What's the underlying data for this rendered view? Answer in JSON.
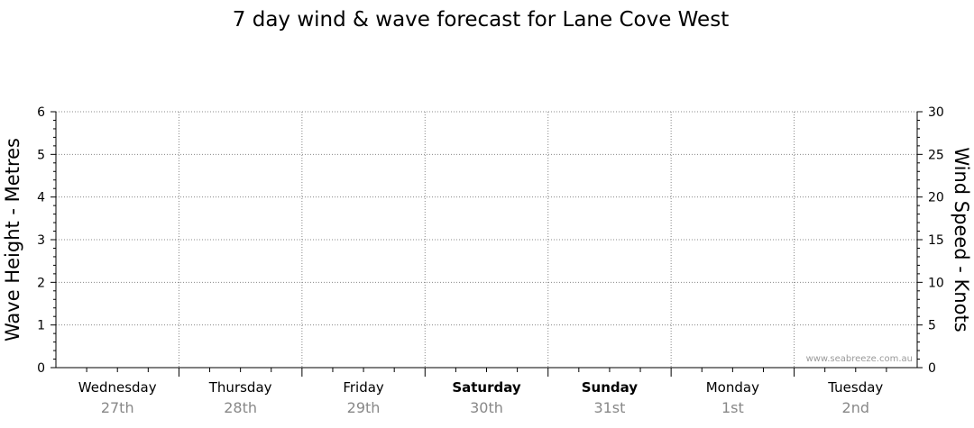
{
  "chart_data": {
    "type": "line",
    "title": "7 day wind & wave forecast for Lane Cove West",
    "ylabel_left": "Wave Height - Metres",
    "ylabel_right": "Wind Speed - Knots",
    "ylim_left": [
      0,
      6
    ],
    "ylim_right": [
      0,
      30
    ],
    "yticks_left": [
      "0",
      "1",
      "2",
      "3",
      "4",
      "5",
      "6"
    ],
    "yticks_right": [
      "0",
      "5",
      "10",
      "15",
      "20",
      "25",
      "30"
    ],
    "days": [
      {
        "day": "Wednesday",
        "date": "27th",
        "bold": false
      },
      {
        "day": "Thursday",
        "date": "28th",
        "bold": false
      },
      {
        "day": "Friday",
        "date": "29th",
        "bold": false
      },
      {
        "day": "Saturday",
        "date": "30th",
        "bold": true
      },
      {
        "day": "Sunday",
        "date": "31st",
        "bold": true
      },
      {
        "day": "Monday",
        "date": "1st",
        "bold": false
      },
      {
        "day": "Tuesday",
        "date": "2nd",
        "bold": false
      }
    ],
    "series": [],
    "grid": true,
    "watermark": "www.seabreeze.com.au"
  }
}
